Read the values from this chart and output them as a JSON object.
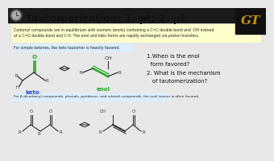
{
  "bg_color": "#e8e8e8",
  "header_color": "#1a1a1a",
  "title": "Tautomerization: 1. pt; 2. pt",
  "title_color": "#111111",
  "title_fontsize": 9.0,
  "yellow_box_color": "#ffffcc",
  "yellow_border": "#cccc88",
  "yellow_text": "Carbonyl compounds are in equilibrium with isomers (enols) containing a C=C double bond and -OH instead\nof a C=O double bond and C-H. The enol and keto forms are rapidly exchanged via proton transfers.",
  "blue_box_color": "#ddeeff",
  "blue_border": "#99bbdd",
  "blue1_text": "For simple ketones, the keto tautomer is heavily favored.",
  "blue2_text": "For β-dicarbonyl compounds, phenols, pyridones, and related compounds, the enol isomer is often favored.",
  "keto_label": "keto",
  "enol_label": "enol",
  "keto_color": "#22aa22",
  "enol_color": "#22aa22",
  "label_color": "#2244cc",
  "struct_color": "#333333",
  "q1": "1.When is the enol\n  form favored?",
  "q2": "2. What is the mechanism\n   of tautomerization?",
  "q_fontsize": 5.0,
  "gt_gold": "#c8960c",
  "gt_bg": "#111111"
}
